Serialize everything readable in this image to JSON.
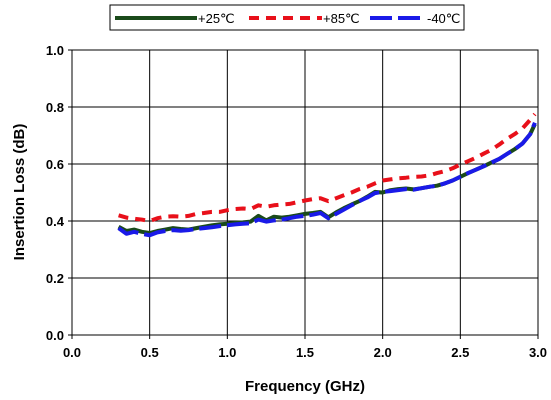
{
  "chart_data": {
    "type": "line",
    "title": "",
    "xlabel": "Frequency (GHz)",
    "ylabel": "Insertion Loss (dB)",
    "xlim": [
      0,
      3
    ],
    "ylim": [
      0,
      1
    ],
    "x_ticks": [
      "0.0",
      "0.5",
      "1.0",
      "1.5",
      "2.0",
      "2.5",
      "3.0"
    ],
    "y_ticks": [
      "0.0",
      "0.2",
      "0.4",
      "0.6",
      "0.8",
      "1.0"
    ],
    "grid": true,
    "legend_position": "top",
    "series": [
      {
        "name": "+25℃",
        "color": "#1a4a1a",
        "dash": "solid",
        "x": [
          0.3,
          0.35,
          0.4,
          0.45,
          0.5,
          0.55,
          0.6,
          0.65,
          0.7,
          0.75,
          0.8,
          0.85,
          0.9,
          0.95,
          1.0,
          1.05,
          1.1,
          1.15,
          1.2,
          1.25,
          1.3,
          1.35,
          1.4,
          1.45,
          1.5,
          1.55,
          1.6,
          1.65,
          1.7,
          1.75,
          1.8,
          1.85,
          1.9,
          1.95,
          2.0,
          2.05,
          2.1,
          2.15,
          2.2,
          2.25,
          2.3,
          2.35,
          2.4,
          2.45,
          2.5,
          2.55,
          2.6,
          2.65,
          2.7,
          2.75,
          2.8,
          2.85,
          2.9,
          2.95,
          2.98
        ],
        "y": [
          0.38,
          0.365,
          0.37,
          0.362,
          0.358,
          0.365,
          0.37,
          0.375,
          0.372,
          0.37,
          0.375,
          0.38,
          0.385,
          0.388,
          0.39,
          0.393,
          0.395,
          0.398,
          0.418,
          0.402,
          0.415,
          0.412,
          0.415,
          0.42,
          0.425,
          0.428,
          0.432,
          0.413,
          0.43,
          0.445,
          0.458,
          0.47,
          0.485,
          0.502,
          0.5,
          0.508,
          0.512,
          0.514,
          0.511,
          0.515,
          0.52,
          0.524,
          0.532,
          0.542,
          0.555,
          0.568,
          0.58,
          0.592,
          0.605,
          0.618,
          0.635,
          0.652,
          0.672,
          0.705,
          0.74
        ]
      },
      {
        "name": "+85℃",
        "color": "#e8101a",
        "dash": "dashed",
        "x": [
          0.3,
          0.35,
          0.4,
          0.45,
          0.5,
          0.55,
          0.6,
          0.65,
          0.7,
          0.75,
          0.8,
          0.85,
          0.9,
          0.95,
          1.0,
          1.05,
          1.1,
          1.15,
          1.2,
          1.25,
          1.3,
          1.35,
          1.4,
          1.45,
          1.5,
          1.55,
          1.6,
          1.65,
          1.7,
          1.75,
          1.8,
          1.85,
          1.9,
          1.95,
          2.0,
          2.05,
          2.1,
          2.15,
          2.2,
          2.25,
          2.3,
          2.35,
          2.4,
          2.45,
          2.5,
          2.55,
          2.6,
          2.65,
          2.7,
          2.75,
          2.8,
          2.85,
          2.9,
          2.95,
          2.98
        ],
        "y": [
          0.42,
          0.412,
          0.408,
          0.405,
          0.4,
          0.41,
          0.415,
          0.417,
          0.415,
          0.418,
          0.425,
          0.428,
          0.432,
          0.432,
          0.438,
          0.442,
          0.444,
          0.442,
          0.455,
          0.45,
          0.455,
          0.458,
          0.46,
          0.466,
          0.472,
          0.477,
          0.48,
          0.47,
          0.48,
          0.49,
          0.5,
          0.512,
          0.52,
          0.532,
          0.542,
          0.546,
          0.55,
          0.552,
          0.555,
          0.556,
          0.56,
          0.568,
          0.575,
          0.585,
          0.598,
          0.61,
          0.622,
          0.636,
          0.65,
          0.668,
          0.688,
          0.705,
          0.725,
          0.755,
          0.775
        ]
      },
      {
        "name": "-40℃",
        "color": "#1a1ae8",
        "dash": "long-dash",
        "x": [
          0.3,
          0.35,
          0.4,
          0.45,
          0.5,
          0.55,
          0.6,
          0.65,
          0.7,
          0.75,
          0.8,
          0.85,
          0.9,
          0.95,
          1.0,
          1.05,
          1.1,
          1.15,
          1.2,
          1.25,
          1.3,
          1.35,
          1.4,
          1.45,
          1.5,
          1.55,
          1.6,
          1.65,
          1.7,
          1.75,
          1.8,
          1.85,
          1.9,
          1.95,
          2.0,
          2.05,
          2.1,
          2.15,
          2.2,
          2.25,
          2.3,
          2.35,
          2.4,
          2.45,
          2.5,
          2.55,
          2.6,
          2.65,
          2.7,
          2.75,
          2.8,
          2.85,
          2.9,
          2.95,
          2.98
        ],
        "y": [
          0.375,
          0.355,
          0.362,
          0.355,
          0.35,
          0.36,
          0.365,
          0.368,
          0.366,
          0.368,
          0.372,
          0.375,
          0.378,
          0.382,
          0.385,
          0.388,
          0.39,
          0.392,
          0.405,
          0.398,
          0.402,
          0.405,
          0.41,
          0.415,
          0.418,
          0.422,
          0.428,
          0.41,
          0.425,
          0.44,
          0.455,
          0.47,
          0.482,
          0.498,
          0.502,
          0.505,
          0.508,
          0.512,
          0.51,
          0.515,
          0.52,
          0.524,
          0.532,
          0.542,
          0.555,
          0.568,
          0.58,
          0.592,
          0.605,
          0.618,
          0.635,
          0.652,
          0.672,
          0.705,
          0.745
        ]
      }
    ]
  }
}
